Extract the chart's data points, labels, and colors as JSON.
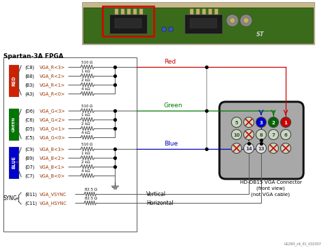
{
  "bg_color": "#ffffff",
  "fpga_label": "Spartan-3A FPGA",
  "red_signals": [
    "(C8)",
    "(B8)",
    "(B3)",
    "(A3)"
  ],
  "red_pins": [
    "VGA_R<3>",
    "VGA_R<2>",
    "VGA_R<1>",
    "VGA_R<0>"
  ],
  "red_resistors": [
    "510 Ω",
    "1 kΩ",
    "2 kΩ",
    "4 kΩ"
  ],
  "green_signals": [
    "(D6)",
    "(C6)",
    "(D5)",
    "(C5)"
  ],
  "green_pins": [
    "VGA_G<3>",
    "VGA_G<2>",
    "VGA_G<1>",
    "VGA_G<0>"
  ],
  "green_resistors": [
    "510 Ω",
    "1 kΩ",
    "2 kΩ",
    "4 kΩ"
  ],
  "blue_signals": [
    "(C9)",
    "(B9)",
    "(D7)",
    "(C7)"
  ],
  "blue_pins": [
    "VGA_B<3>",
    "VGA_B<2>",
    "VGA_B<1>",
    "VGA_B<0>"
  ],
  "blue_resistors": [
    "510 Ω",
    "1 kΩ",
    "2 kΩ",
    "4 kΩ"
  ],
  "sync_signals": [
    "(B11)",
    "(C11)"
  ],
  "sync_pins": [
    "VGA_VSYNC",
    "VGA_HSYNC"
  ],
  "sync_resistors": [
    "82.5 Ω",
    "82.5 Ω"
  ],
  "sync_labels": [
    "Vertical",
    "Horizontal"
  ],
  "wire_color_red": "#cc0000",
  "wire_color_green": "#007700",
  "wire_color_blue": "#0000bb",
  "connector_label": "HD-DB15 VGA Connector\n(front view)\n(not VGA cable)",
  "watermark": "UG293_c6_01_032307",
  "pcb_green": "#3a6b1a",
  "pcb_dark": "#222222",
  "pin_label_color": "#993300",
  "res_label_color": "#000000"
}
